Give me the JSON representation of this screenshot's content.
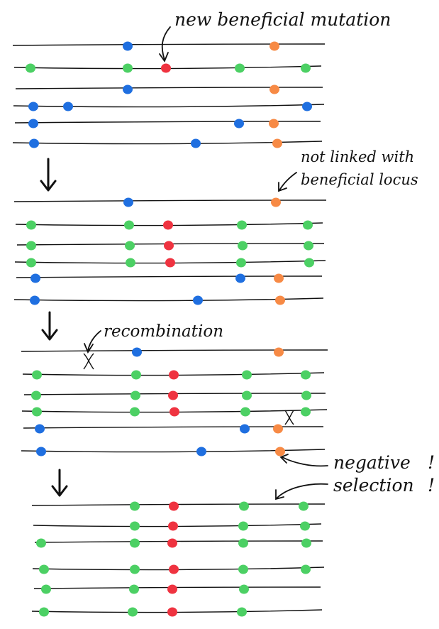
{
  "colors": {
    "blue": "#1f6fe0",
    "green": "#4cd064",
    "red": "#ef3340",
    "orange": "#f78a45",
    "line": "#111111"
  },
  "annotations": {
    "new_mutation": "new beneficial mutation",
    "not_linked_1": "not linked with",
    "not_linked_2": "beneficial locus",
    "recombination": "recombination",
    "negative_1": "negative",
    "negative_2": "selection"
  },
  "icons": {
    "generation_arrow": "down-arrow-icon",
    "pointer_arrow": "curved-arrow-icon",
    "crossover": "crossover-icon",
    "allele": "dot-icon"
  },
  "generations": [
    {
      "rows": [
        [
          "blue",
          "orange"
        ],
        [
          "green",
          "green",
          "red",
          "green",
          "green"
        ],
        [
          "blue",
          "orange"
        ],
        [
          "blue",
          "blue",
          "blue"
        ],
        [
          "blue",
          "blue",
          "orange"
        ],
        [
          "blue",
          "blue",
          "orange"
        ]
      ]
    },
    {
      "rows": [
        [
          "blue",
          "orange"
        ],
        [
          "green",
          "green",
          "red",
          "green",
          "green"
        ],
        [
          "green",
          "green",
          "red",
          "green",
          "green"
        ],
        [
          "green",
          "green",
          "red",
          "green",
          "green"
        ],
        [
          "blue",
          "blue",
          "orange"
        ],
        [
          "blue",
          "blue",
          "orange"
        ]
      ]
    },
    {
      "rows": [
        [
          "blue",
          "orange"
        ],
        [
          "green",
          "green",
          "red",
          "green",
          "green"
        ],
        [
          "green",
          "green",
          "red",
          "green",
          "green"
        ],
        [
          "green",
          "green",
          "red",
          "green",
          "green"
        ],
        [
          "blue",
          "blue",
          "orange"
        ],
        [
          "blue",
          "blue",
          "orange"
        ]
      ]
    },
    {
      "rows": [
        [
          "green",
          "red",
          "green",
          "green"
        ],
        [
          "green",
          "red",
          "green",
          "green"
        ],
        [
          "green",
          "green",
          "red",
          "green",
          "green"
        ],
        [
          "green",
          "green",
          "red",
          "green",
          "green"
        ],
        [
          "green",
          "green",
          "red",
          "green"
        ],
        [
          "green",
          "green",
          "red",
          "green"
        ]
      ]
    }
  ]
}
